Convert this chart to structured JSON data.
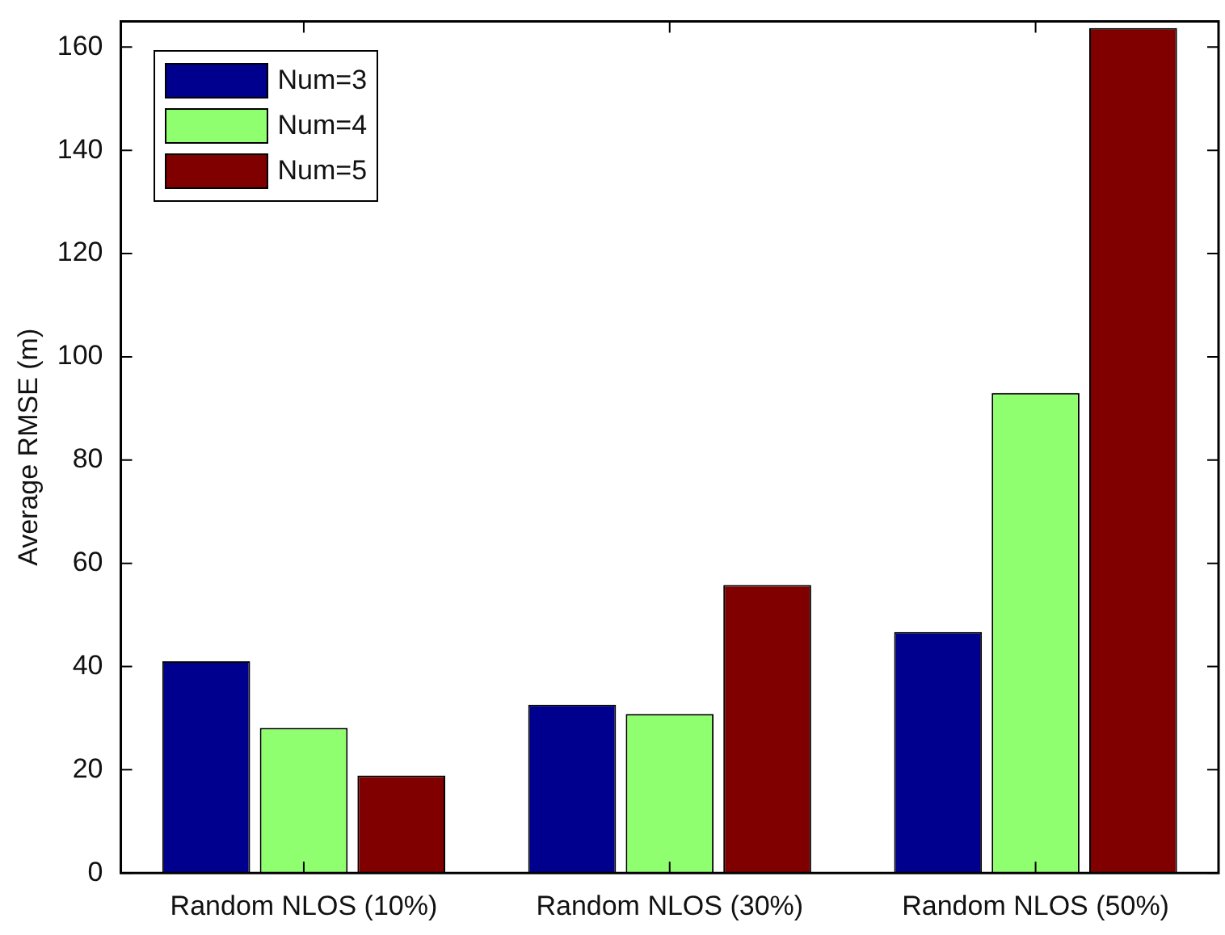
{
  "chart_data": {
    "type": "bar",
    "ylabel": "Average RMSE (m)",
    "categories": [
      "Random NLOS (10%)",
      "Random NLOS (30%)",
      "Random NLOS (50%)"
    ],
    "series": [
      {
        "name": "Num=3",
        "color": "#00008f",
        "values": [
          41,
          32.6,
          46.7
        ]
      },
      {
        "name": "Num=4",
        "color": "#8fff70",
        "values": [
          28.1,
          30.8,
          93
        ]
      },
      {
        "name": "Num=5",
        "color": "#800000",
        "values": [
          18.9,
          55.8,
          163.7
        ]
      }
    ],
    "ylim": [
      0,
      165
    ],
    "yticks": [
      0,
      20,
      40,
      60,
      80,
      100,
      120,
      140,
      160
    ],
    "grid": false,
    "legend": "top left"
  }
}
